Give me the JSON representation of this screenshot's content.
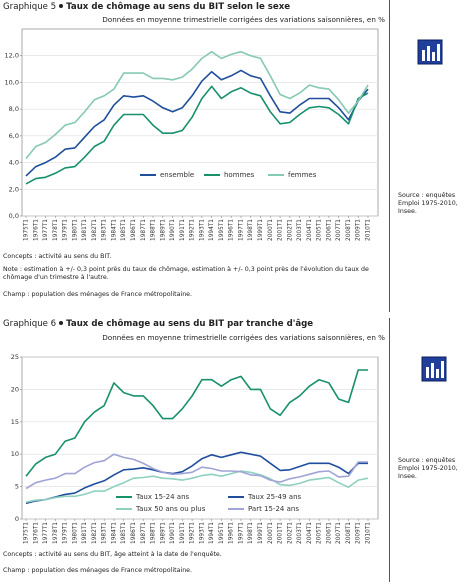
{
  "chart_data": [
    {
      "type": "line",
      "label": "Graphique 5",
      "title": "Taux de chômage au sens du BIT selon le sexe",
      "subtitle": "Données en moyenne trimestrielle corrigées des variations saisonnières, en %",
      "categories": [
        "1975T1",
        "1976T1",
        "1977T1",
        "1978T1",
        "1979T1",
        "1980T1",
        "1981T1",
        "1982T1",
        "1983T1",
        "1984T1",
        "1985T1",
        "1986T1",
        "1987T1",
        "1988T1",
        "1989T1",
        "1990T1",
        "1991T1",
        "1992T1",
        "1993T1",
        "1994T1",
        "1995T1",
        "1996T1",
        "1997T1",
        "1998T1",
        "1999T1",
        "2000T1",
        "2001T1",
        "2002T1",
        "2003T1",
        "2004T1",
        "2005T1",
        "2006T1",
        "2007T1",
        "2008T1",
        "2009T1",
        "2010T1"
      ],
      "series": [
        {
          "name": "ensemble",
          "color": "#1f4e9c",
          "values": [
            3.0,
            3.7,
            4.0,
            4.4,
            5.0,
            5.1,
            5.9,
            6.7,
            7.2,
            8.3,
            9.0,
            8.9,
            9.0,
            8.6,
            8.1,
            7.8,
            8.1,
            9.0,
            10.1,
            10.8,
            10.2,
            10.5,
            10.9,
            10.5,
            10.3,
            9.0,
            7.8,
            7.7,
            8.3,
            8.8,
            8.8,
            8.8,
            8.1,
            7.2,
            8.6,
            9.5
          ]
        },
        {
          "name": "hommes",
          "color": "#17906c",
          "values": [
            2.4,
            2.8,
            2.9,
            3.2,
            3.6,
            3.7,
            4.4,
            5.2,
            5.6,
            6.8,
            7.6,
            7.6,
            7.6,
            6.8,
            6.2,
            6.2,
            6.4,
            7.4,
            8.8,
            9.7,
            8.8,
            9.3,
            9.6,
            9.2,
            9.0,
            7.8,
            6.9,
            7.0,
            7.6,
            8.1,
            8.2,
            8.1,
            7.6,
            6.9,
            8.8,
            9.2
          ]
        },
        {
          "name": "femmes",
          "color": "#86c9b4",
          "values": [
            4.3,
            5.2,
            5.5,
            6.1,
            6.8,
            7.0,
            7.8,
            8.7,
            9.0,
            9.5,
            10.7,
            10.7,
            10.7,
            10.3,
            10.3,
            10.2,
            10.4,
            11.0,
            11.8,
            12.3,
            11.8,
            12.1,
            12.3,
            12.0,
            11.8,
            10.5,
            9.1,
            8.8,
            9.2,
            9.8,
            9.6,
            9.5,
            8.7,
            7.7,
            8.6,
            9.8
          ]
        }
      ],
      "ylim": [
        0,
        14
      ],
      "yticks": [
        {
          "value": 0,
          "label": "0,0"
        },
        {
          "value": 2,
          "label": "2,0"
        },
        {
          "value": 4,
          "label": "4,0"
        },
        {
          "value": 6,
          "label": "6,0"
        },
        {
          "value": 8,
          "label": "8,0"
        },
        {
          "value": 10,
          "label": "10,0"
        },
        {
          "value": 12,
          "label": "12,0"
        }
      ],
      "grid": true,
      "legend": "bottom-center",
      "notes": [
        "Concepts : activité au sens du BIT.",
        "Note : estimation à +/- 0,3 point près du taux de chômage, estimation à +/- 0,3 point près de l'évolution du taux de chômage d'un trimestre à l'autre.",
        "Champ : population des ménages de France métropolitaine."
      ],
      "source": "Source : enquêtes Emploi 1975-2010, Insee."
    },
    {
      "type": "line",
      "label": "Graphique 6",
      "title": "Taux de chômage au sens du BIT par tranche d'âge",
      "subtitle": "Données en moyenne trimestrielle corrigées des variations saisonnières, en %",
      "categories": [
        "1975T1",
        "1976T1",
        "1977T1",
        "1978T1",
        "1979T1",
        "1980T1",
        "1981T1",
        "1982T1",
        "1983T1",
        "1984T1",
        "1985T1",
        "1986T1",
        "1987T1",
        "1988T1",
        "1989T1",
        "1990T1",
        "1991T1",
        "1992T1",
        "1993T1",
        "1994T1",
        "1995T1",
        "1996T1",
        "1997T1",
        "1998T1",
        "1999T1",
        "2000T1",
        "2001T1",
        "2002T1",
        "2003T1",
        "2004T1",
        "2005T1",
        "2006T1",
        "2007T1",
        "2008T1",
        "2009T1",
        "2010T1"
      ],
      "series": [
        {
          "name": "Taux 15-24 ans",
          "color": "#17906c",
          "values": [
            6.6,
            8.5,
            9.5,
            10.0,
            12.0,
            12.5,
            15.0,
            16.5,
            17.5,
            21.0,
            19.5,
            19.0,
            19.0,
            17.5,
            15.5,
            15.5,
            17.0,
            19.0,
            21.5,
            21.5,
            20.5,
            21.5,
            22.0,
            20.0,
            20.0,
            17.0,
            16.0,
            18.0,
            19.0,
            20.5,
            21.5,
            21.0,
            18.5,
            18.0,
            23.0,
            23.0
          ]
        },
        {
          "name": "Taux 25-49 ans",
          "color": "#1f4e9c",
          "values": [
            2.4,
            2.8,
            3.0,
            3.4,
            3.8,
            4.0,
            4.8,
            5.4,
            5.9,
            6.8,
            7.6,
            7.7,
            7.9,
            7.6,
            7.2,
            7.0,
            7.3,
            8.2,
            9.3,
            9.9,
            9.5,
            9.9,
            10.3,
            10.0,
            9.7,
            8.6,
            7.5,
            7.6,
            8.1,
            8.6,
            8.6,
            8.6,
            8.0,
            7.0,
            8.6,
            8.6
          ]
        },
        {
          "name": "Taux 50 ans ou plus",
          "color": "#8fd0c0",
          "values": [
            2.6,
            2.9,
            3.0,
            3.3,
            3.5,
            3.5,
            3.8,
            4.3,
            4.3,
            5.0,
            5.6,
            6.3,
            6.4,
            6.6,
            6.3,
            6.2,
            6.0,
            6.3,
            6.7,
            6.9,
            6.6,
            7.0,
            7.4,
            7.2,
            6.8,
            6.2,
            5.3,
            5.2,
            5.5,
            6.0,
            6.2,
            6.4,
            5.6,
            4.9,
            6.0,
            6.3
          ]
        },
        {
          "name": "Part 15-24 ans",
          "color": "#a0a4d6",
          "values": [
            4.7,
            5.6,
            6.0,
            6.3,
            7.0,
            7.0,
            8.0,
            8.7,
            9.0,
            10.0,
            9.5,
            9.2,
            8.6,
            7.8,
            7.2,
            6.9,
            7.0,
            7.2,
            8.0,
            7.8,
            7.4,
            7.4,
            7.3,
            6.8,
            6.7,
            6.0,
            5.7,
            6.2,
            6.5,
            6.9,
            7.3,
            7.4,
            6.5,
            6.6,
            8.8,
            8.8
          ]
        }
      ],
      "ylim": [
        0,
        25
      ],
      "yticks": [
        0,
        5,
        10,
        15,
        20,
        25
      ],
      "grid": true,
      "legend": "bottom-center",
      "notes": [
        "Concepts : activité au sens du BIT, âge atteint à la date de l'enquête.",
        "Champ : population des ménages de France métropolitaine."
      ],
      "source": "Source : enquêtes Emploi 1975-2010, Insee."
    }
  ]
}
